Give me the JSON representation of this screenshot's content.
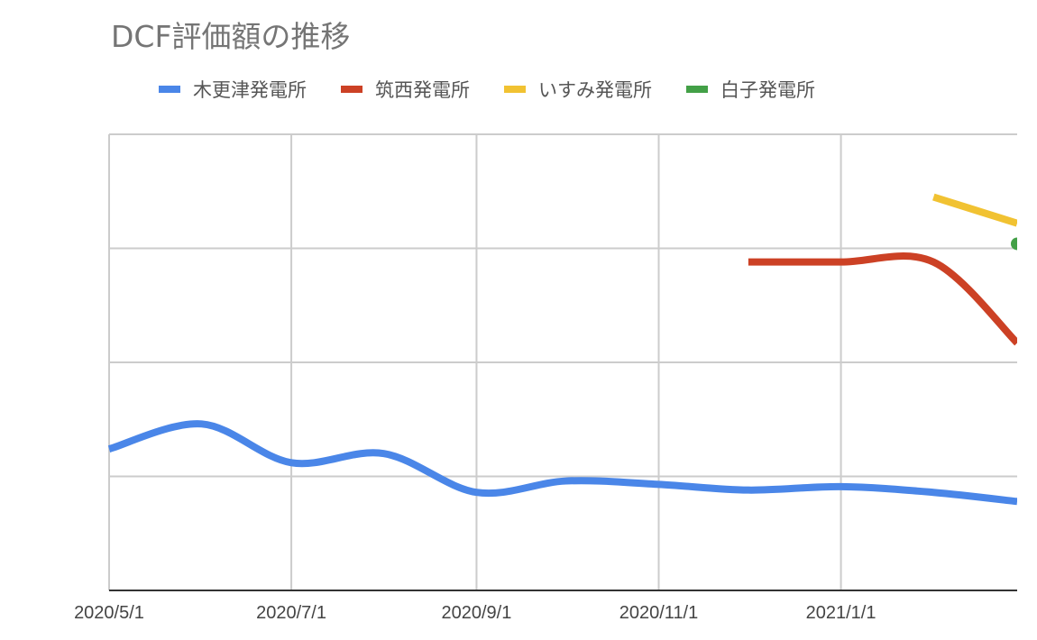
{
  "chart_data": {
    "type": "line",
    "title": "DCF評価額の推移",
    "xlabel": "",
    "ylabel": "",
    "x_ticks": [
      "2020/5/1",
      "2020/7/1",
      "2020/9/1",
      "2020/11/1",
      "2021/1/1"
    ],
    "x_range": [
      "2020/5/1",
      "2021/3/1"
    ],
    "y_range": [
      0,
      4
    ],
    "y_gridlines": [
      1,
      2,
      3,
      4
    ],
    "y_tick_labels_visible": false,
    "grid": true,
    "legend_position": "top",
    "smooth": true,
    "series": [
      {
        "name": "木更津発電所",
        "color": "#4a86e8",
        "points": [
          {
            "x": "2020/5/1",
            "y": 1.24
          },
          {
            "x": "2020/6/1",
            "y": 1.46
          },
          {
            "x": "2020/7/1",
            "y": 1.12
          },
          {
            "x": "2020/8/1",
            "y": 1.2
          },
          {
            "x": "2020/9/1",
            "y": 0.86
          },
          {
            "x": "2020/10/1",
            "y": 0.96
          },
          {
            "x": "2020/11/1",
            "y": 0.93
          },
          {
            "x": "2020/12/1",
            "y": 0.88
          },
          {
            "x": "2021/1/1",
            "y": 0.91
          },
          {
            "x": "2021/2/1",
            "y": 0.86
          },
          {
            "x": "2021/3/1",
            "y": 0.78
          }
        ]
      },
      {
        "name": "筑西発電所",
        "color": "#cc4125",
        "points": [
          {
            "x": "2020/12/1",
            "y": 2.88
          },
          {
            "x": "2021/1/1",
            "y": 2.88
          },
          {
            "x": "2021/2/1",
            "y": 2.88
          },
          {
            "x": "2021/3/1",
            "y": 2.17
          }
        ]
      },
      {
        "name": "いすみ発電所",
        "color": "#f1c232",
        "points": [
          {
            "x": "2021/2/1",
            "y": 3.45
          },
          {
            "x": "2021/3/1",
            "y": 3.22
          }
        ]
      },
      {
        "name": "白子発電所",
        "color": "#43a047",
        "points": [
          {
            "x": "2021/3/1",
            "y": 3.04
          }
        ]
      }
    ]
  }
}
